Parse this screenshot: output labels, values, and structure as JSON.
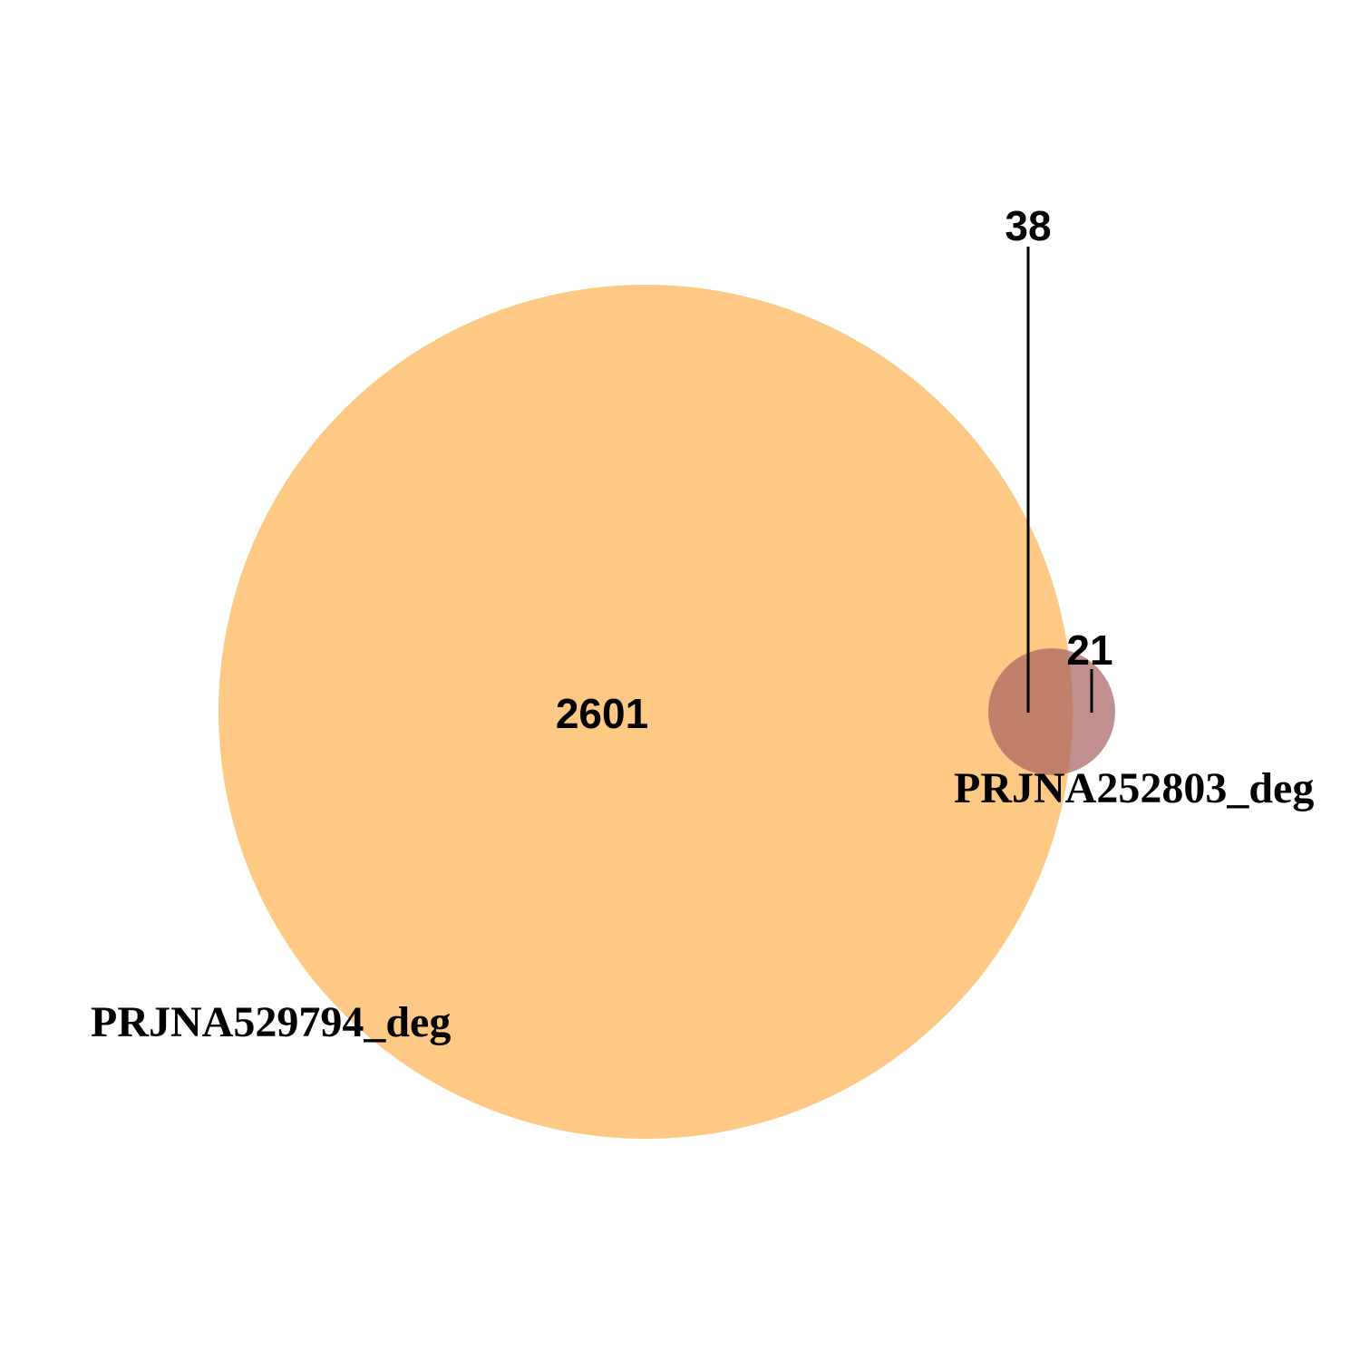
{
  "diagram": {
    "type": "venn",
    "sets": [
      {
        "label": "PRJNA529794_deg",
        "color": "#fdbf6f",
        "opacity": 0.85
      },
      {
        "label": "PRJNA252803_deg",
        "color": "#a6615e",
        "opacity": 0.7
      }
    ],
    "regions": {
      "only_PRJNA529794": "2601",
      "intersection": "38",
      "only_PRJNA252803": "21"
    }
  }
}
